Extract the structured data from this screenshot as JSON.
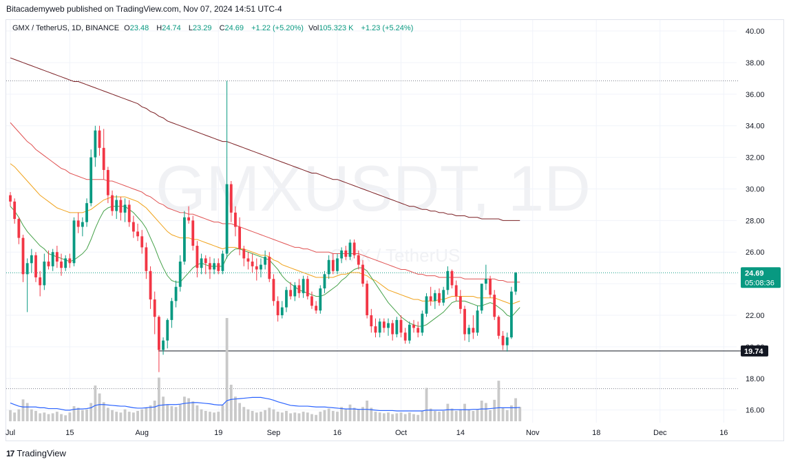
{
  "header": {
    "publisher_line": "Bitacademyweb published on TradingView.com, Nov 07, 2024 14:51 UTC-4"
  },
  "legend": {
    "symbol": "GMX / TetherUS, 1D, BINANCE",
    "o_label": "O",
    "o_value": "23.48",
    "h_label": "H",
    "h_value": "24.74",
    "l_label": "L",
    "l_value": "23.29",
    "c_label": "C",
    "c_value": "24.69",
    "change": "+1.22 (+5.20%)",
    "vol_label": "Vol",
    "vol_value": "105.323 K",
    "vol_change": "+1.23 (+5.24%)"
  },
  "watermark": {
    "main": "GMXUSDT, 1D",
    "sub": "GMX / TetherUS"
  },
  "price_badge": {
    "value": "24.69",
    "countdown": "05:08:36"
  },
  "level_badge": {
    "value": "19.74"
  },
  "footer": {
    "brand": "TradingView",
    "logo": "17"
  },
  "colors": {
    "up": "#089981",
    "down": "#f23645",
    "volume": "#c9c9c9",
    "volume_ma": "#2962ff",
    "ma_fast": "#43a047",
    "ma_mid": "#f0a21a",
    "ma_slow": "#e05050",
    "ma_long": "#7b1f23"
  },
  "chart_data": {
    "type": "candlestick",
    "symbol": "GMX / TetherUS",
    "timeframe": "1D",
    "exchange": "BINANCE",
    "y_ticks": [
      "16.00",
      "18.00",
      "20.00",
      "22.00",
      "24.00",
      "26.00",
      "28.00",
      "30.00",
      "32.00",
      "34.00",
      "36.00",
      "38.00",
      "40.00"
    ],
    "x_ticks": [
      "Jul",
      "15",
      "Aug",
      "19",
      "Sep",
      "16",
      "Oct",
      "14",
      "Nov",
      "18",
      "Dec",
      "16"
    ],
    "x_tick_days": [
      0,
      14,
      31,
      49,
      62,
      77,
      92,
      106,
      123,
      138,
      153,
      168
    ],
    "ylim": [
      15.2,
      40.7
    ],
    "xlim_days": [
      0,
      172
    ],
    "last_close": 24.69,
    "support_level": 19.74,
    "dotted_levels": [
      36.85,
      24.69,
      17.35
    ],
    "candles_start_day": 0,
    "candles": [
      [
        29.6,
        29.8,
        28.9,
        29.2
      ],
      [
        29.2,
        29.4,
        27.8,
        28.1
      ],
      [
        28.1,
        28.2,
        26.5,
        26.9
      ],
      [
        26.9,
        27.1,
        24.1,
        24.6
      ],
      [
        24.6,
        25.6,
        22.2,
        25.3
      ],
      [
        25.3,
        26.2,
        24.7,
        25.8
      ],
      [
        25.8,
        26.0,
        24.1,
        24.4
      ],
      [
        24.4,
        24.8,
        23.2,
        23.9
      ],
      [
        23.9,
        25.9,
        23.6,
        25.4
      ],
      [
        25.4,
        26.1,
        24.9,
        25.1
      ],
      [
        25.1,
        26.2,
        24.8,
        26.0
      ],
      [
        26.0,
        26.4,
        25.0,
        25.4
      ],
      [
        25.4,
        25.9,
        24.5,
        25.0
      ],
      [
        25.0,
        25.8,
        24.8,
        25.6
      ],
      [
        25.6,
        25.9,
        25.0,
        25.3
      ],
      [
        25.3,
        28.2,
        25.1,
        28.0
      ],
      [
        28.0,
        28.5,
        27.2,
        27.6
      ],
      [
        27.6,
        28.2,
        27.0,
        27.9
      ],
      [
        27.9,
        29.4,
        27.6,
        29.1
      ],
      [
        29.1,
        32.5,
        28.9,
        32.0
      ],
      [
        32.0,
        34.0,
        31.4,
        33.7
      ],
      [
        33.7,
        34.0,
        32.1,
        32.6
      ],
      [
        32.6,
        33.8,
        30.6,
        31.2
      ],
      [
        31.2,
        31.4,
        29.1,
        29.6
      ],
      [
        29.6,
        29.9,
        28.3,
        28.6
      ],
      [
        28.6,
        29.6,
        28.1,
        29.3
      ],
      [
        29.3,
        29.5,
        28.0,
        28.5
      ],
      [
        28.5,
        29.4,
        27.9,
        29.0
      ],
      [
        29.0,
        29.3,
        27.6,
        27.9
      ],
      [
        27.9,
        28.3,
        26.9,
        27.3
      ],
      [
        27.3,
        27.8,
        26.7,
        27.0
      ],
      [
        27.0,
        27.4,
        25.9,
        26.3
      ],
      [
        26.3,
        26.6,
        24.3,
        24.8
      ],
      [
        24.8,
        25.1,
        22.4,
        23.0
      ],
      [
        23.0,
        23.5,
        20.8,
        21.9
      ],
      [
        21.9,
        22.0,
        18.4,
        19.8
      ],
      [
        19.8,
        20.6,
        19.5,
        20.4
      ],
      [
        20.4,
        21.8,
        19.9,
        21.7
      ],
      [
        21.7,
        23.1,
        21.2,
        22.9
      ],
      [
        22.9,
        24.2,
        22.5,
        23.8
      ],
      [
        23.8,
        25.8,
        23.5,
        25.4
      ],
      [
        25.4,
        28.6,
        25.2,
        28.2
      ],
      [
        28.2,
        28.9,
        27.8,
        28.0
      ],
      [
        28.0,
        28.3,
        26.1,
        26.4
      ],
      [
        26.4,
        26.7,
        24.4,
        25.0
      ],
      [
        25.0,
        25.9,
        24.6,
        25.6
      ],
      [
        25.6,
        25.8,
        24.6,
        25.3
      ],
      [
        25.3,
        25.7,
        24.3,
        24.9
      ],
      [
        24.9,
        25.6,
        24.6,
        25.3
      ],
      [
        25.3,
        25.6,
        24.6,
        24.8
      ],
      [
        24.8,
        26.1,
        24.6,
        25.9
      ],
      [
        25.9,
        36.85,
        25.6,
        30.3
      ],
      [
        30.3,
        30.5,
        27.9,
        28.5
      ],
      [
        28.5,
        28.9,
        27.0,
        27.6
      ],
      [
        27.6,
        28.2,
        25.8,
        26.2
      ],
      [
        26.2,
        26.4,
        25.1,
        25.6
      ],
      [
        25.6,
        26.0,
        24.9,
        25.4
      ],
      [
        25.4,
        25.9,
        24.7,
        25.1
      ],
      [
        25.1,
        25.6,
        24.2,
        24.9
      ],
      [
        24.9,
        25.6,
        24.4,
        25.2
      ],
      [
        25.2,
        26.1,
        24.9,
        25.7
      ],
      [
        25.7,
        26.0,
        24.1,
        24.3
      ],
      [
        24.3,
        24.6,
        22.6,
        22.9
      ],
      [
        22.9,
        23.2,
        21.6,
        22.0
      ],
      [
        22.0,
        22.9,
        21.8,
        22.5
      ],
      [
        22.5,
        23.8,
        22.2,
        23.6
      ],
      [
        23.6,
        24.1,
        23.0,
        23.2
      ],
      [
        23.2,
        24.1,
        22.9,
        23.9
      ],
      [
        23.9,
        24.3,
        23.1,
        23.4
      ],
      [
        23.4,
        24.5,
        23.1,
        24.3
      ],
      [
        24.3,
        24.5,
        23.0,
        23.2
      ],
      [
        23.2,
        23.5,
        22.4,
        22.6
      ],
      [
        22.6,
        22.9,
        22.1,
        22.3
      ],
      [
        22.3,
        23.9,
        22.1,
        23.7
      ],
      [
        23.7,
        24.8,
        23.4,
        24.6
      ],
      [
        24.6,
        25.8,
        24.3,
        25.5
      ],
      [
        25.5,
        25.9,
        24.6,
        24.8
      ],
      [
        24.8,
        25.9,
        24.6,
        25.6
      ],
      [
        25.6,
        26.3,
        25.3,
        26.1
      ],
      [
        26.1,
        26.4,
        25.5,
        25.7
      ],
      [
        25.7,
        26.8,
        25.5,
        26.6
      ],
      [
        26.6,
        26.8,
        25.6,
        25.8
      ],
      [
        25.8,
        26.1,
        24.9,
        25.2
      ],
      [
        25.2,
        25.5,
        23.8,
        24.0
      ],
      [
        24.0,
        24.2,
        21.8,
        22.0
      ],
      [
        22.0,
        22.4,
        20.9,
        21.3
      ],
      [
        21.3,
        21.8,
        20.6,
        20.9
      ],
      [
        20.9,
        21.8,
        20.6,
        21.6
      ],
      [
        21.6,
        21.8,
        20.9,
        21.2
      ],
      [
        21.2,
        21.8,
        20.7,
        21.5
      ],
      [
        21.5,
        21.7,
        20.4,
        20.8
      ],
      [
        20.8,
        21.9,
        20.6,
        21.7
      ],
      [
        21.7,
        22.0,
        20.6,
        20.9
      ],
      [
        20.9,
        21.2,
        20.2,
        20.4
      ],
      [
        20.4,
        21.6,
        20.2,
        21.4
      ],
      [
        21.4,
        21.7,
        20.9,
        21.2
      ],
      [
        21.2,
        21.6,
        20.6,
        20.9
      ],
      [
        20.9,
        22.3,
        20.7,
        22.1
      ],
      [
        22.1,
        23.4,
        21.9,
        23.2
      ],
      [
        23.2,
        23.8,
        22.6,
        22.9
      ],
      [
        22.9,
        23.6,
        22.4,
        23.4
      ],
      [
        23.4,
        23.7,
        22.6,
        22.8
      ],
      [
        22.8,
        23.8,
        22.6,
        23.6
      ],
      [
        23.6,
        25.1,
        23.3,
        24.8
      ],
      [
        24.8,
        24.9,
        23.7,
        23.9
      ],
      [
        23.9,
        24.2,
        22.9,
        23.2
      ],
      [
        23.2,
        23.6,
        22.1,
        22.4
      ],
      [
        22.4,
        22.6,
        20.4,
        20.8
      ],
      [
        20.8,
        21.4,
        20.3,
        21.2
      ],
      [
        21.2,
        22.0,
        20.5,
        20.9
      ],
      [
        20.9,
        22.6,
        20.7,
        22.3
      ],
      [
        22.3,
        24.0,
        22.1,
        24.0
      ],
      [
        24.0,
        25.2,
        23.6,
        24.3
      ],
      [
        24.3,
        24.5,
        23.1,
        23.3
      ],
      [
        23.3,
        23.6,
        21.7,
        21.9
      ],
      [
        21.9,
        22.0,
        20.5,
        20.7
      ],
      [
        20.7,
        21.0,
        19.8,
        20.1
      ],
      [
        20.1,
        20.9,
        19.7,
        20.6
      ],
      [
        20.6,
        23.8,
        20.5,
        23.5
      ],
      [
        23.5,
        24.74,
        23.29,
        24.69
      ]
    ],
    "volumes": [
      0.28,
      0.22,
      0.3,
      0.55,
      0.46,
      0.3,
      0.26,
      0.2,
      0.22,
      0.18,
      0.2,
      0.24,
      0.18,
      0.15,
      0.22,
      0.38,
      0.34,
      0.28,
      0.3,
      0.46,
      0.9,
      0.7,
      0.48,
      0.34,
      0.28,
      0.24,
      0.22,
      0.3,
      0.24,
      0.22,
      0.26,
      0.3,
      0.34,
      0.4,
      0.52,
      1.1,
      0.62,
      0.42,
      0.38,
      0.36,
      0.42,
      0.62,
      0.58,
      0.5,
      0.4,
      0.3,
      0.26,
      0.24,
      0.22,
      0.24,
      0.4,
      2.6,
      0.92,
      0.62,
      0.46,
      0.36,
      0.3,
      0.26,
      0.22,
      0.24,
      0.28,
      0.34,
      0.3,
      0.24,
      0.22,
      0.26,
      0.2,
      0.22,
      0.2,
      0.24,
      0.22,
      0.18,
      0.16,
      0.24,
      0.28,
      0.32,
      0.26,
      0.24,
      0.36,
      0.3,
      0.42,
      0.34,
      0.3,
      0.36,
      0.52,
      0.34,
      0.24,
      0.22,
      0.2,
      0.22,
      0.18,
      0.2,
      0.22,
      0.18,
      0.22,
      0.18,
      0.16,
      0.26,
      0.84,
      0.32,
      0.26,
      0.24,
      0.26,
      0.44,
      0.32,
      0.26,
      0.3,
      0.44,
      0.3,
      0.26,
      0.3,
      0.52,
      0.46,
      0.28,
      0.54,
      1.02,
      0.34,
      0.28,
      0.4,
      0.58,
      0.36
    ],
    "volume_max": 2.6,
    "volume_ma": [
      0.46,
      0.42,
      0.38,
      0.36,
      0.36,
      0.36,
      0.36,
      0.34,
      0.34,
      0.32,
      0.32,
      0.32,
      0.3,
      0.28,
      0.28,
      0.3,
      0.31,
      0.31,
      0.32,
      0.34,
      0.4,
      0.42,
      0.42,
      0.41,
      0.4,
      0.39,
      0.38,
      0.38,
      0.36,
      0.34,
      0.33,
      0.33,
      0.34,
      0.35,
      0.36,
      0.4,
      0.41,
      0.42,
      0.42,
      0.42,
      0.43,
      0.45,
      0.46,
      0.47,
      0.47,
      0.46,
      0.45,
      0.44,
      0.42,
      0.41,
      0.41,
      0.52,
      0.55,
      0.56,
      0.57,
      0.58,
      0.59,
      0.6,
      0.6,
      0.6,
      0.58,
      0.56,
      0.53,
      0.49,
      0.46,
      0.43,
      0.4,
      0.39,
      0.38,
      0.38,
      0.38,
      0.37,
      0.36,
      0.36,
      0.36,
      0.35,
      0.34,
      0.33,
      0.32,
      0.31,
      0.31,
      0.31,
      0.3,
      0.3,
      0.3,
      0.29,
      0.28,
      0.27,
      0.27,
      0.27,
      0.27,
      0.26,
      0.26,
      0.26,
      0.26,
      0.26,
      0.26,
      0.26,
      0.28,
      0.28,
      0.28,
      0.28,
      0.28,
      0.29,
      0.29,
      0.29,
      0.29,
      0.29,
      0.29,
      0.3,
      0.3,
      0.31,
      0.31,
      0.32,
      0.33,
      0.34,
      0.34,
      0.34,
      0.34,
      0.34,
      0.35
    ],
    "ma_fast": [
      28.9,
      28.6,
      28.2,
      27.7,
      27.3,
      27.0,
      26.7,
      26.4,
      26.2,
      25.9,
      25.8,
      25.7,
      25.6,
      25.5,
      25.4,
      25.5,
      25.7,
      25.9,
      26.2,
      26.8,
      27.5,
      28.1,
      28.6,
      28.8,
      28.9,
      28.9,
      28.9,
      28.9,
      28.7,
      28.5,
      28.2,
      27.9,
      27.5,
      26.9,
      26.3,
      25.6,
      25.0,
      24.5,
      24.2,
      24.1,
      24.1,
      24.4,
      24.7,
      25.0,
      25.2,
      25.3,
      25.2,
      25.1,
      25.1,
      25.1,
      25.1,
      25.7,
      26.0,
      26.2,
      26.2,
      26.1,
      26.0,
      25.9,
      25.8,
      25.7,
      25.6,
      25.5,
      25.2,
      24.9,
      24.5,
      24.2,
      24.0,
      23.8,
      23.6,
      23.5,
      23.4,
      23.3,
      23.2,
      23.2,
      23.3,
      23.5,
      23.7,
      23.9,
      24.2,
      24.4,
      24.7,
      24.9,
      25.0,
      25.0,
      24.8,
      24.4,
      24.0,
      23.6,
      23.2,
      22.8,
      22.5,
      22.2,
      21.9,
      21.7,
      21.5,
      21.4,
      21.3,
      21.3,
      21.4,
      21.6,
      21.8,
      22.0,
      22.2,
      22.5,
      22.8,
      22.9,
      22.9,
      22.9,
      22.8,
      22.7,
      22.6,
      22.6,
      22.7,
      22.8,
      22.7,
      22.5,
      22.3,
      22.0,
      21.9,
      22.2,
      22.5
    ],
    "ma_mid": [
      31.6,
      31.4,
      31.1,
      30.8,
      30.5,
      30.2,
      29.9,
      29.6,
      29.4,
      29.2,
      29.0,
      28.8,
      28.7,
      28.6,
      28.5,
      28.5,
      28.5,
      28.5,
      28.6,
      28.7,
      28.9,
      29.1,
      29.3,
      29.4,
      29.5,
      29.5,
      29.5,
      29.5,
      29.4,
      29.3,
      29.2,
      29.0,
      28.8,
      28.5,
      28.2,
      27.9,
      27.6,
      27.3,
      27.1,
      27.0,
      26.9,
      26.9,
      26.9,
      26.8,
      26.8,
      26.7,
      26.6,
      26.5,
      26.4,
      26.3,
      26.2,
      26.3,
      26.3,
      26.3,
      26.2,
      26.2,
      26.1,
      26.0,
      25.9,
      25.8,
      25.8,
      25.7,
      25.5,
      25.4,
      25.2,
      25.1,
      25.0,
      24.9,
      24.8,
      24.7,
      24.6,
      24.5,
      24.4,
      24.4,
      24.4,
      24.4,
      24.4,
      24.5,
      24.6,
      24.6,
      24.7,
      24.7,
      24.7,
      24.6,
      24.5,
      24.3,
      24.2,
      24.0,
      23.8,
      23.6,
      23.5,
      23.4,
      23.3,
      23.2,
      23.1,
      23.0,
      23.0,
      22.9,
      22.9,
      22.9,
      22.9,
      23.0,
      23.0,
      23.1,
      23.2,
      23.2,
      23.2,
      23.2,
      23.2,
      23.2,
      23.1,
      23.1,
      23.1,
      23.1,
      23.1,
      23.0,
      22.9,
      22.8,
      22.7,
      22.8,
      22.9
    ],
    "ma_slow": [
      34.2,
      33.9,
      33.6,
      33.3,
      33.0,
      32.8,
      32.5,
      32.3,
      32.1,
      31.9,
      31.7,
      31.5,
      31.3,
      31.2,
      31.0,
      30.9,
      30.8,
      30.7,
      30.6,
      30.6,
      30.6,
      30.6,
      30.6,
      30.5,
      30.5,
      30.4,
      30.3,
      30.2,
      30.1,
      30.0,
      29.9,
      29.8,
      29.6,
      29.5,
      29.3,
      29.1,
      29.0,
      28.8,
      28.7,
      28.6,
      28.5,
      28.5,
      28.4,
      28.4,
      28.3,
      28.2,
      28.1,
      28.0,
      27.9,
      27.9,
      27.8,
      27.8,
      27.8,
      27.7,
      27.6,
      27.5,
      27.4,
      27.3,
      27.2,
      27.1,
      27.0,
      26.9,
      26.8,
      26.7,
      26.6,
      26.5,
      26.4,
      26.3,
      26.3,
      26.2,
      26.2,
      26.1,
      26.0,
      26.0,
      26.0,
      26.0,
      25.9,
      25.9,
      25.9,
      25.9,
      25.9,
      25.9,
      25.9,
      25.8,
      25.7,
      25.6,
      25.5,
      25.4,
      25.3,
      25.2,
      25.1,
      25.0,
      24.9,
      24.9,
      24.8,
      24.7,
      24.6,
      24.6,
      24.5,
      24.5,
      24.5,
      24.4,
      24.4,
      24.4,
      24.4,
      24.4,
      24.4,
      24.3,
      24.3,
      24.3,
      24.3,
      24.3,
      24.3,
      24.3,
      24.3,
      24.2,
      24.2,
      24.1,
      24.1,
      24.1,
      24.1
    ],
    "ma_long": [
      38.3,
      38.2,
      38.1,
      38.0,
      37.9,
      37.8,
      37.7,
      37.6,
      37.5,
      37.4,
      37.3,
      37.2,
      37.1,
      37.0,
      36.9,
      36.8,
      36.8,
      36.7,
      36.6,
      36.5,
      36.4,
      36.3,
      36.2,
      36.1,
      36.0,
      35.9,
      35.8,
      35.7,
      35.6,
      35.5,
      35.4,
      35.2,
      35.1,
      34.9,
      34.8,
      34.6,
      34.5,
      34.3,
      34.2,
      34.1,
      34.0,
      33.9,
      33.8,
      33.7,
      33.6,
      33.5,
      33.4,
      33.3,
      33.2,
      33.1,
      33.0,
      33.0,
      32.9,
      32.8,
      32.7,
      32.6,
      32.5,
      32.4,
      32.3,
      32.2,
      32.1,
      32.0,
      31.9,
      31.8,
      31.7,
      31.6,
      31.5,
      31.4,
      31.3,
      31.2,
      31.1,
      31.0,
      31.0,
      30.9,
      30.8,
      30.7,
      30.6,
      30.6,
      30.5,
      30.4,
      30.3,
      30.2,
      30.1,
      30.0,
      29.9,
      29.8,
      29.7,
      29.6,
      29.5,
      29.4,
      29.3,
      29.2,
      29.1,
      29.0,
      28.9,
      28.9,
      28.8,
      28.7,
      28.7,
      28.6,
      28.6,
      28.5,
      28.5,
      28.4,
      28.4,
      28.3,
      28.3,
      28.3,
      28.2,
      28.2,
      28.2,
      28.1,
      28.1,
      28.1,
      28.1,
      28.1,
      28.0,
      28.0,
      28.0,
      28.0,
      28.0
    ]
  }
}
